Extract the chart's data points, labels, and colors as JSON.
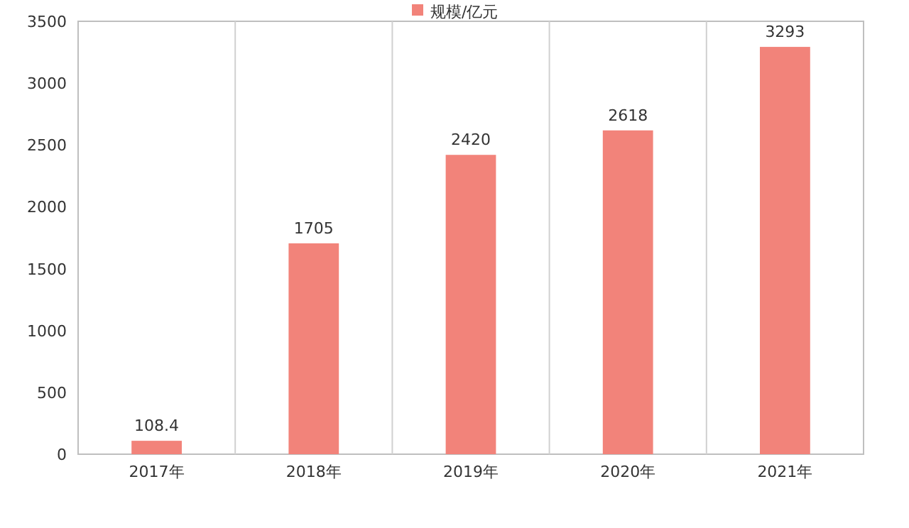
{
  "chart_data": {
    "type": "bar",
    "categories": [
      "2017年",
      "2018年",
      "2019年",
      "2020年",
      "2021年"
    ],
    "series": [
      {
        "name": "规模/亿元",
        "color": "#f2837a",
        "values": [
          108.4,
          1705,
          2420,
          2618,
          3293
        ]
      }
    ],
    "ylim": [
      0,
      3500
    ],
    "yticks": [
      0,
      500,
      1000,
      1500,
      2000,
      2500,
      3000,
      3500
    ],
    "grid": "x",
    "legend": "top",
    "data_labels": true
  }
}
